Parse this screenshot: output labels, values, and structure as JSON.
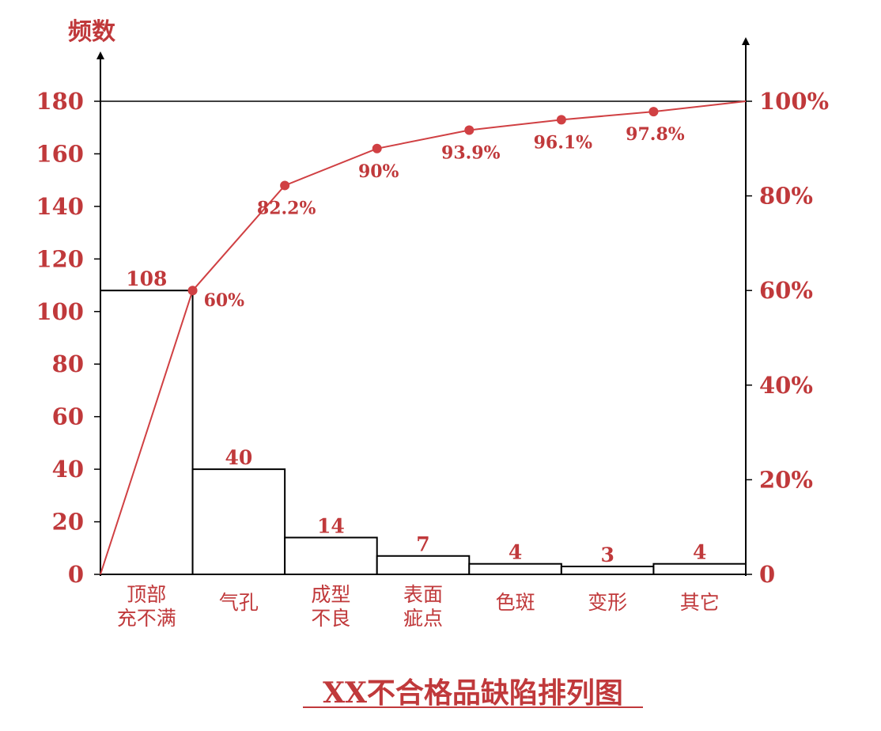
{
  "chart_data": {
    "type": "bar",
    "title": "XX不合格品缺陷排列图",
    "ylabel": "频数",
    "categories": [
      [
        "顶部",
        "充不满"
      ],
      [
        "气孔"
      ],
      [
        "成型",
        "不良"
      ],
      [
        "表面",
        "疵点"
      ],
      [
        "色斑"
      ],
      [
        "变形"
      ],
      [
        "其它"
      ]
    ],
    "values": [
      108,
      40,
      14,
      7,
      4,
      3,
      4
    ],
    "value_labels": [
      "108",
      "40",
      "14",
      "7",
      "4",
      "3",
      "4"
    ],
    "cumulative_percent": [
      60,
      82.2,
      90,
      93.9,
      96.1,
      97.8,
      100
    ],
    "cumulative_labels": [
      "60%",
      "82.2%",
      "90%",
      "93.9%",
      "96.1%",
      "97.8%"
    ],
    "ylim": [
      0,
      180
    ],
    "y_ticks": [
      "0",
      "20",
      "40",
      "60",
      "80",
      "100",
      "120",
      "140",
      "160",
      "180"
    ],
    "y2lim": [
      0,
      100
    ],
    "y2_ticks": [
      "0",
      "20%",
      "40%",
      "60%",
      "80%",
      "100%"
    ],
    "grid": false,
    "colors": {
      "bars_outline": "#000000",
      "line": "#d04043",
      "text": "#c0393b"
    }
  }
}
